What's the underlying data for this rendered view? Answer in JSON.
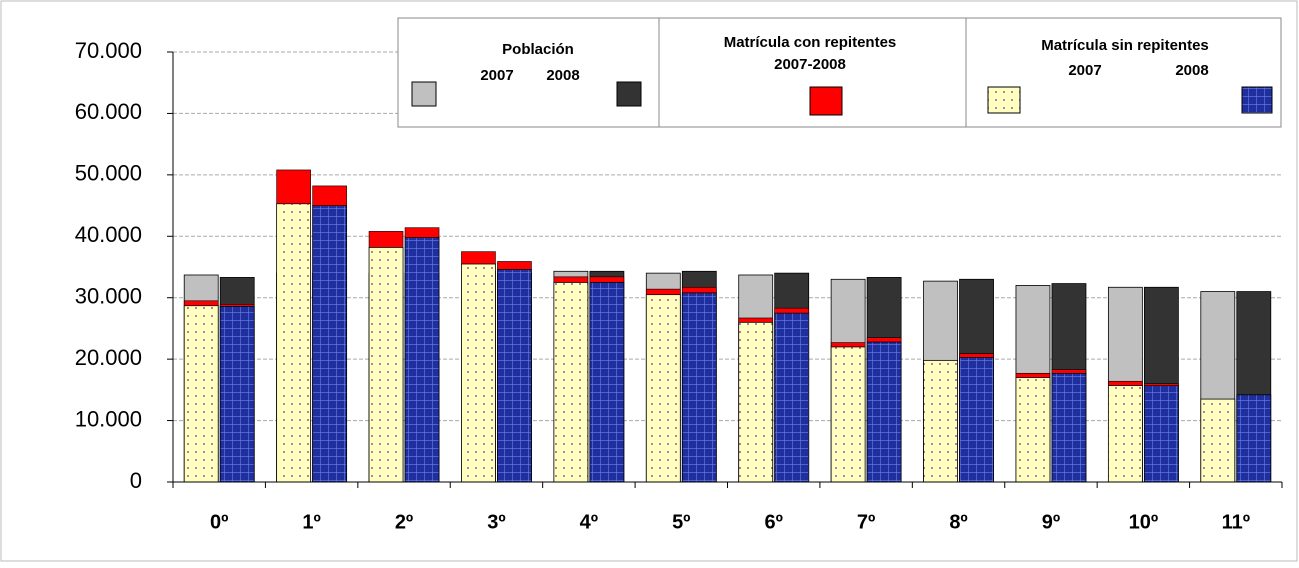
{
  "chart_data": {
    "type": "bar",
    "categories": [
      "0º",
      "1º",
      "2º",
      "3º",
      "4º",
      "5º",
      "6º",
      "7º",
      "8º",
      "9º",
      "10º",
      "11º"
    ],
    "ylim": [
      0,
      70000
    ],
    "yticks": [
      0,
      {
        "value": 10000,
        "label": "10.000"
      },
      {
        "value": 20000,
        "label": "20.000"
      },
      {
        "value": 30000,
        "label": "30.000"
      },
      {
        "value": 40000,
        "label": "40.000"
      },
      {
        "value": 50000,
        "label": "50.000"
      },
      {
        "value": 60000,
        "label": "60.000"
      },
      {
        "value": 70000,
        "label": "70.000"
      }
    ],
    "grid": true,
    "groups": [
      {
        "name": "Población",
        "series": [
          {
            "name": "2007",
            "color": "#c0c0c0",
            "values": [
              33700,
              34000,
              34000,
              34300,
              34300,
              34000,
              33700,
              33000,
              32700,
              32000,
              31700,
              31000
            ]
          },
          {
            "name": "2008",
            "color": "#333333",
            "values": [
              33300,
              34000,
              34000,
              34000,
              34300,
              34300,
              34000,
              33300,
              33000,
              32300,
              31700,
              31000
            ]
          }
        ]
      },
      {
        "name": "Matrícula con repitentes",
        "label": "2007-2008",
        "color": "#ff0000",
        "series": [
          {
            "values": [
              800,
              5500,
              2600,
              2000,
              900,
              900,
              700,
              700,
              0,
              700,
              700,
              0
            ]
          },
          {
            "values": [
              300,
              3200,
              1600,
              1300,
              900,
              900,
              800,
              700,
              600,
              600,
              300,
              0
            ]
          }
        ]
      },
      {
        "name": "Matrícula sin repitentes",
        "series": [
          {
            "name": "2007",
            "color": "#ffffc0",
            "pattern": "dots",
            "values": [
              28700,
              45300,
              38200,
              35500,
              32500,
              30500,
              26000,
              22000,
              19800,
              17000,
              15700,
              13500
            ]
          },
          {
            "name": "2008",
            "color": "#1f2f9f",
            "pattern": "grid",
            "values": [
              28600,
              45000,
              39800,
              34600,
              32500,
              30800,
              27500,
              22800,
              20300,
              17700,
              15700,
              14200
            ]
          }
        ]
      }
    ]
  }
}
